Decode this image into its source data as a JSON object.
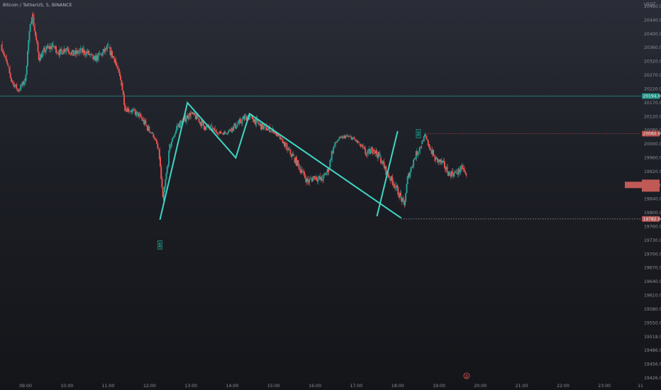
{
  "chart_data": {
    "type": "candlestick",
    "title": "Bitcoin / TetherUS, 5, BINANCE",
    "unit": "USDT",
    "y_ticks": [
      "20480.00",
      "20440.00",
      "20400.00",
      "20360.00",
      "20320.00",
      "20270.00",
      "20220.00",
      "20170.00",
      "20120.00",
      "20080.00",
      "20000.00",
      "19960.00",
      "19920.00",
      "19880.00",
      "19840.00",
      "19800.00",
      "19760.00",
      "19730.00",
      "19700.00",
      "19670.00",
      "19640.00",
      "19610.00",
      "19580.00",
      "19550.00",
      "19518.00",
      "19486.00",
      "19456.00",
      "19426.00"
    ],
    "x_ticks": [
      "09:00",
      "10:00",
      "11:00",
      "12:00",
      "13:00",
      "14:00",
      "15:00",
      "16:00",
      "17:00",
      "18:00",
      "19:00",
      "20:00",
      "21:00",
      "22:00",
      "23:00",
      "11"
    ],
    "price_lines": [
      {
        "label": "20194.06",
        "price": 20194.06,
        "color": "#26a69a",
        "style": "solid"
      },
      {
        "label": "20060.00",
        "price": 20060,
        "color": "#ef5350",
        "style": "dotted"
      },
      {
        "label": "19782.00",
        "price": 19782,
        "color": "#bcbcbc",
        "style": "dotted"
      }
    ],
    "last_price_tag": {
      "label": "",
      "price": 19880
    },
    "close_series": [
      {
        "t": "08:25",
        "close": 20370
      },
      {
        "t": "08:35",
        "close": 20300
      },
      {
        "t": "08:40",
        "close": 20250
      },
      {
        "t": "08:50",
        "close": 20215
      },
      {
        "t": "09:00",
        "close": 20250
      },
      {
        "t": "09:05",
        "close": 20380
      },
      {
        "t": "09:10",
        "close": 20460
      },
      {
        "t": "09:20",
        "close": 20330
      },
      {
        "t": "09:30",
        "close": 20355
      },
      {
        "t": "09:40",
        "close": 20365
      },
      {
        "t": "09:50",
        "close": 20345
      },
      {
        "t": "10:00",
        "close": 20360
      },
      {
        "t": "10:10",
        "close": 20340
      },
      {
        "t": "10:20",
        "close": 20350
      },
      {
        "t": "10:30",
        "close": 20345
      },
      {
        "t": "10:40",
        "close": 20325
      },
      {
        "t": "10:50",
        "close": 20340
      },
      {
        "t": "11:00",
        "close": 20360
      },
      {
        "t": "11:10",
        "close": 20325
      },
      {
        "t": "11:20",
        "close": 20240
      },
      {
        "t": "11:25",
        "close": 20150
      },
      {
        "t": "11:35",
        "close": 20140
      },
      {
        "t": "11:45",
        "close": 20125
      },
      {
        "t": "11:55",
        "close": 20095
      },
      {
        "t": "12:05",
        "close": 20060
      },
      {
        "t": "12:15",
        "close": 19960
      },
      {
        "t": "12:20",
        "close": 19835
      },
      {
        "t": "12:30",
        "close": 19990
      },
      {
        "t": "12:40",
        "close": 20090
      },
      {
        "t": "12:50",
        "close": 20110
      },
      {
        "t": "13:00",
        "close": 20130
      },
      {
        "t": "13:10",
        "close": 20115
      },
      {
        "t": "13:20",
        "close": 20090
      },
      {
        "t": "13:30",
        "close": 20085
      },
      {
        "t": "13:40",
        "close": 20065
      },
      {
        "t": "13:50",
        "close": 20065
      },
      {
        "t": "14:00",
        "close": 20085
      },
      {
        "t": "14:10",
        "close": 20100
      },
      {
        "t": "14:20",
        "close": 20120
      },
      {
        "t": "14:30",
        "close": 20115
      },
      {
        "t": "14:40",
        "close": 20095
      },
      {
        "t": "14:50",
        "close": 20085
      },
      {
        "t": "15:00",
        "close": 20075
      },
      {
        "t": "15:10",
        "close": 20030
      },
      {
        "t": "15:20",
        "close": 19985
      },
      {
        "t": "15:30",
        "close": 19960
      },
      {
        "t": "15:40",
        "close": 19925
      },
      {
        "t": "15:50",
        "close": 19890
      },
      {
        "t": "16:00",
        "close": 19905
      },
      {
        "t": "16:10",
        "close": 19895
      },
      {
        "t": "16:20",
        "close": 19925
      },
      {
        "t": "16:25",
        "close": 19975
      },
      {
        "t": "16:35",
        "close": 20030
      },
      {
        "t": "16:45",
        "close": 20045
      },
      {
        "t": "16:55",
        "close": 20035
      },
      {
        "t": "17:05",
        "close": 20000
      },
      {
        "t": "17:15",
        "close": 19970
      },
      {
        "t": "17:25",
        "close": 19985
      },
      {
        "t": "17:35",
        "close": 19960
      },
      {
        "t": "17:45",
        "close": 19915
      },
      {
        "t": "17:55",
        "close": 19885
      },
      {
        "t": "18:05",
        "close": 19845
      },
      {
        "t": "18:10",
        "close": 19820
      },
      {
        "t": "18:15",
        "close": 19900
      },
      {
        "t": "18:25",
        "close": 19960
      },
      {
        "t": "18:35",
        "close": 20000
      },
      {
        "t": "18:40",
        "close": 20050
      },
      {
        "t": "18:45",
        "close": 20000
      },
      {
        "t": "18:55",
        "close": 19955
      },
      {
        "t": "19:05",
        "close": 19945
      },
      {
        "t": "19:15",
        "close": 19915
      },
      {
        "t": "19:25",
        "close": 19915
      },
      {
        "t": "19:35",
        "close": 19930
      },
      {
        "t": "19:40",
        "close": 19905
      }
    ],
    "drawing_zigzag": [
      {
        "t": "12:15",
        "price": 19780
      },
      {
        "t": "12:55",
        "price": 20170
      },
      {
        "t": "14:05",
        "price": 19960
      },
      {
        "t": "14:25",
        "price": 20130
      },
      {
        "t": "18:05",
        "price": 19785
      }
    ],
    "drawing_line_2": [
      {
        "t": "17:30",
        "price": 19790
      },
      {
        "t": "18:00",
        "price": 20075
      }
    ],
    "markers": [
      {
        "label": "1",
        "t": "12:15",
        "price": 19720
      },
      {
        "label": "2",
        "t": "18:30",
        "price": 20060
      }
    ],
    "event_badge": {
      "label": "₿",
      "t": "19:40"
    },
    "colors": {
      "up": "#26a69a",
      "down": "#ef5350",
      "drawing": "#3fd6c4"
    },
    "grid": false
  }
}
